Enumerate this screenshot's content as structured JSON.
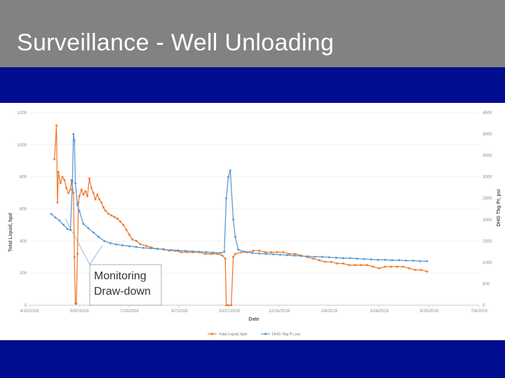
{
  "slide": {
    "title": "Surveillance - Well Unloading",
    "colors": {
      "title_bar": "#828282",
      "background": "#000e8f",
      "title_text": "#ffffff"
    }
  },
  "chart_data": {
    "type": "line",
    "xlabel": "Date",
    "ylabel_left": "Total Liquid, bpd",
    "ylabel_right": "DHG Tbg Pr, psi",
    "x_ticks": [
      "4/10/2018",
      "5/30/2018",
      "7/19/2018",
      "9/7/2018",
      "10/27/2018",
      "12/16/2018",
      "2/4/2019",
      "3/26/2019",
      "5/15/2019",
      "7/4/2019"
    ],
    "y_left_ticks": [
      0,
      200,
      400,
      600,
      800,
      1000,
      1200
    ],
    "y_right_ticks": [
      0,
      500,
      1000,
      1500,
      2000,
      2500,
      3000,
      3500,
      4000,
      4500
    ],
    "xlim": [
      "2018-04-10",
      "2019-07-04"
    ],
    "ylim_left": [
      0,
      1200
    ],
    "ylim_right": [
      0,
      4500
    ],
    "grid": true,
    "legend_position": "bottom",
    "series": [
      {
        "name": "Total Liquid, bpd",
        "axis": "left",
        "color": "#ed7d31",
        "points": [
          [
            "2018-05-05",
            910
          ],
          [
            "2018-05-07",
            1120
          ],
          [
            "2018-05-08",
            640
          ],
          [
            "2018-05-09",
            830
          ],
          [
            "2018-05-11",
            760
          ],
          [
            "2018-05-13",
            800
          ],
          [
            "2018-05-15",
            780
          ],
          [
            "2018-05-17",
            730
          ],
          [
            "2018-05-19",
            700
          ],
          [
            "2018-05-21",
            720
          ],
          [
            "2018-05-22",
            780
          ],
          [
            "2018-05-24",
            700
          ],
          [
            "2018-05-25",
            300
          ],
          [
            "2018-05-26",
            10
          ],
          [
            "2018-05-27",
            10
          ],
          [
            "2018-05-28",
            320
          ],
          [
            "2018-05-29",
            640
          ],
          [
            "2018-05-30",
            680
          ],
          [
            "2018-06-01",
            720
          ],
          [
            "2018-06-03",
            690
          ],
          [
            "2018-06-05",
            710
          ],
          [
            "2018-06-07",
            680
          ],
          [
            "2018-06-09",
            790
          ],
          [
            "2018-06-11",
            730
          ],
          [
            "2018-06-13",
            700
          ],
          [
            "2018-06-15",
            660
          ],
          [
            "2018-06-17",
            690
          ],
          [
            "2018-06-19",
            660
          ],
          [
            "2018-06-21",
            640
          ],
          [
            "2018-06-23",
            610
          ],
          [
            "2018-06-25",
            590
          ],
          [
            "2018-06-28",
            570
          ],
          [
            "2018-07-01",
            560
          ],
          [
            "2018-07-04",
            550
          ],
          [
            "2018-07-07",
            540
          ],
          [
            "2018-07-10",
            520
          ],
          [
            "2018-07-13",
            500
          ],
          [
            "2018-07-16",
            470
          ],
          [
            "2018-07-19",
            440
          ],
          [
            "2018-07-22",
            410
          ],
          [
            "2018-07-26",
            400
          ],
          [
            "2018-07-30",
            380
          ],
          [
            "2018-08-05",
            370
          ],
          [
            "2018-08-10",
            360
          ],
          [
            "2018-08-16",
            350
          ],
          [
            "2018-08-22",
            350
          ],
          [
            "2018-08-28",
            340
          ],
          [
            "2018-09-03",
            340
          ],
          [
            "2018-09-09",
            330
          ],
          [
            "2018-09-15",
            330
          ],
          [
            "2018-09-21",
            330
          ],
          [
            "2018-09-27",
            330
          ],
          [
            "2018-10-03",
            320
          ],
          [
            "2018-10-09",
            320
          ],
          [
            "2018-10-15",
            320
          ],
          [
            "2018-10-20",
            310
          ],
          [
            "2018-10-23",
            290
          ],
          [
            "2018-10-24",
            0
          ],
          [
            "2018-10-26",
            0
          ],
          [
            "2018-10-29",
            0
          ],
          [
            "2018-10-31",
            300
          ],
          [
            "2018-11-02",
            320
          ],
          [
            "2018-11-08",
            330
          ],
          [
            "2018-11-14",
            330
          ],
          [
            "2018-11-20",
            340
          ],
          [
            "2018-11-26",
            340
          ],
          [
            "2018-12-02",
            330
          ],
          [
            "2018-12-08",
            330
          ],
          [
            "2018-12-14",
            330
          ],
          [
            "2018-12-20",
            330
          ],
          [
            "2018-12-26",
            320
          ],
          [
            "2019-01-01",
            320
          ],
          [
            "2019-01-07",
            310
          ],
          [
            "2019-01-13",
            300
          ],
          [
            "2019-01-19",
            290
          ],
          [
            "2019-01-25",
            280
          ],
          [
            "2019-01-31",
            270
          ],
          [
            "2019-02-06",
            270
          ],
          [
            "2019-02-12",
            260
          ],
          [
            "2019-02-18",
            260
          ],
          [
            "2019-02-24",
            250
          ],
          [
            "2019-03-02",
            250
          ],
          [
            "2019-03-08",
            250
          ],
          [
            "2019-03-14",
            250
          ],
          [
            "2019-03-20",
            240
          ],
          [
            "2019-03-26",
            230
          ],
          [
            "2019-04-01",
            240
          ],
          [
            "2019-04-07",
            240
          ],
          [
            "2019-04-13",
            240
          ],
          [
            "2019-04-19",
            240
          ],
          [
            "2019-04-25",
            230
          ],
          [
            "2019-05-01",
            220
          ],
          [
            "2019-05-07",
            220
          ],
          [
            "2019-05-13",
            210
          ]
        ]
      },
      {
        "name": "DHG Tbg Pr, psi",
        "axis": "right",
        "color": "#5b9bd5",
        "points": [
          [
            "2018-05-02",
            2130
          ],
          [
            "2018-05-06",
            2050
          ],
          [
            "2018-05-10",
            1980
          ],
          [
            "2018-05-14",
            1880
          ],
          [
            "2018-05-18",
            1780
          ],
          [
            "2018-05-21",
            1760
          ],
          [
            "2018-05-23",
            2900
          ],
          [
            "2018-05-24",
            4000
          ],
          [
            "2018-05-25",
            3850
          ],
          [
            "2018-05-26",
            2850
          ],
          [
            "2018-05-28",
            2350
          ],
          [
            "2018-05-30",
            2200
          ],
          [
            "2018-06-03",
            1900
          ],
          [
            "2018-06-08",
            1800
          ],
          [
            "2018-06-13",
            1700
          ],
          [
            "2018-06-18",
            1600
          ],
          [
            "2018-06-24",
            1500
          ],
          [
            "2018-06-30",
            1450
          ],
          [
            "2018-07-06",
            1420
          ],
          [
            "2018-07-12",
            1400
          ],
          [
            "2018-07-19",
            1380
          ],
          [
            "2018-07-26",
            1360
          ],
          [
            "2018-08-02",
            1340
          ],
          [
            "2018-08-09",
            1330
          ],
          [
            "2018-08-16",
            1320
          ],
          [
            "2018-08-23",
            1300
          ],
          [
            "2018-08-30",
            1290
          ],
          [
            "2018-09-06",
            1280
          ],
          [
            "2018-09-13",
            1270
          ],
          [
            "2018-09-20",
            1260
          ],
          [
            "2018-09-27",
            1250
          ],
          [
            "2018-10-04",
            1240
          ],
          [
            "2018-10-11",
            1230
          ],
          [
            "2018-10-18",
            1220
          ],
          [
            "2018-10-22",
            1250
          ],
          [
            "2018-10-24",
            2500
          ],
          [
            "2018-10-26",
            3000
          ],
          [
            "2018-10-28",
            3150
          ],
          [
            "2018-10-31",
            2000
          ],
          [
            "2018-11-02",
            1600
          ],
          [
            "2018-11-05",
            1300
          ],
          [
            "2018-11-12",
            1250
          ],
          [
            "2018-11-19",
            1220
          ],
          [
            "2018-11-26",
            1210
          ],
          [
            "2018-12-03",
            1200
          ],
          [
            "2018-12-10",
            1190
          ],
          [
            "2018-12-17",
            1180
          ],
          [
            "2018-12-24",
            1170
          ],
          [
            "2018-12-31",
            1160
          ],
          [
            "2019-01-07",
            1150
          ],
          [
            "2019-01-14",
            1140
          ],
          [
            "2019-01-21",
            1130
          ],
          [
            "2019-01-28",
            1130
          ],
          [
            "2019-02-04",
            1120
          ],
          [
            "2019-02-11",
            1110
          ],
          [
            "2019-02-18",
            1100
          ],
          [
            "2019-02-25",
            1100
          ],
          [
            "2019-03-04",
            1090
          ],
          [
            "2019-03-11",
            1080
          ],
          [
            "2019-03-18",
            1070
          ],
          [
            "2019-03-25",
            1060
          ],
          [
            "2019-04-01",
            1060
          ],
          [
            "2019-04-08",
            1050
          ],
          [
            "2019-04-15",
            1050
          ],
          [
            "2019-04-22",
            1040
          ],
          [
            "2019-04-29",
            1040
          ],
          [
            "2019-05-06",
            1030
          ],
          [
            "2019-05-13",
            1030
          ]
        ]
      }
    ],
    "annotation": {
      "text_line1": "Monitoring",
      "text_line2": "Draw-down"
    }
  }
}
